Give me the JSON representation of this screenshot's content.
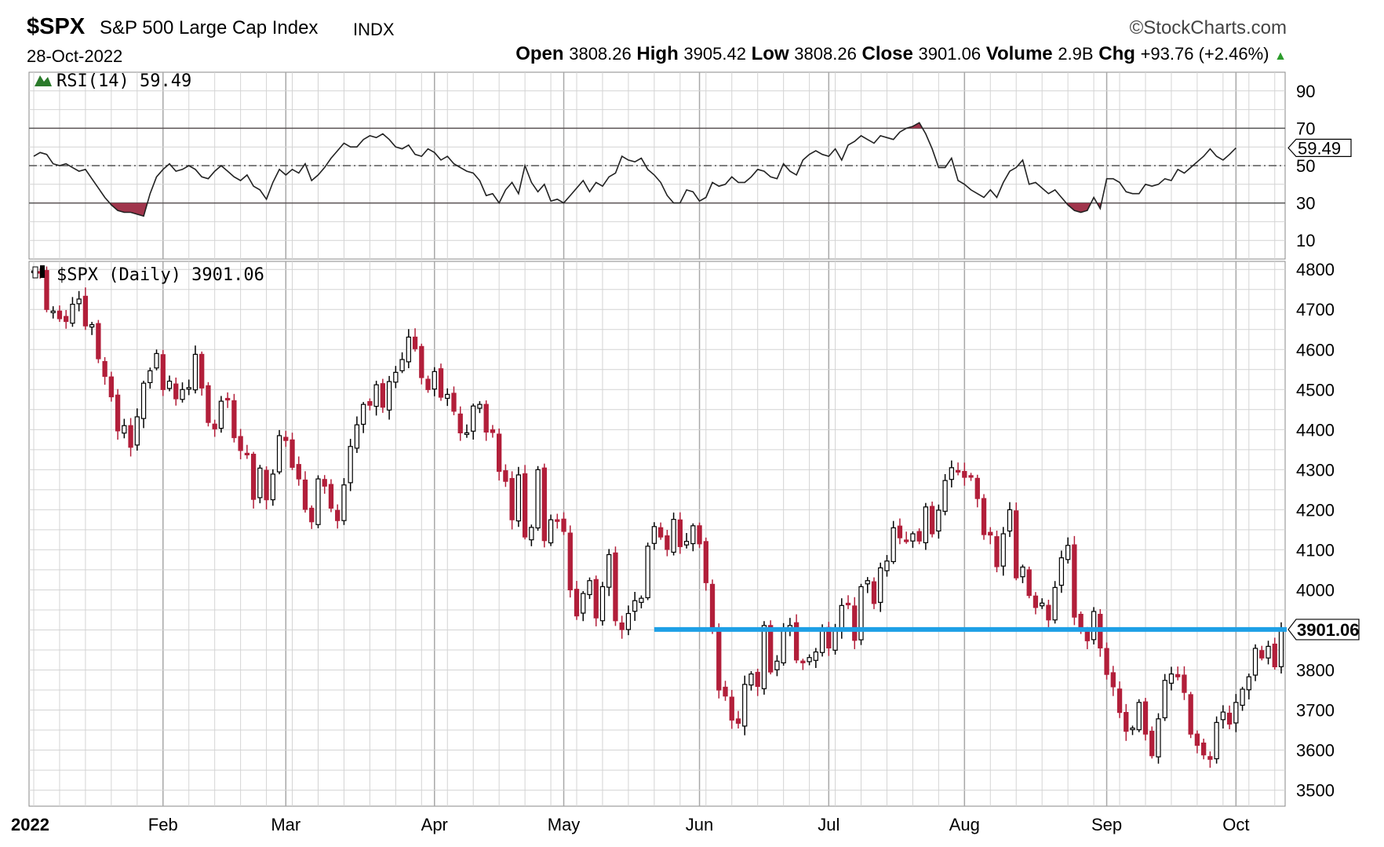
{
  "header": {
    "symbol": "$SPX",
    "name": "S&P 500 Large Cap Index",
    "exchange": "INDX",
    "brand": "StockCharts.com",
    "date": "28-Oct-2022",
    "open_label": "Open",
    "open": "3808.26",
    "high_label": "High",
    "high": "3905.42",
    "low_label": "Low",
    "low": "3808.26",
    "close_label": "Close",
    "close": "3901.06",
    "volume_label": "Volume",
    "volume": "2.9B",
    "chg_label": "Chg",
    "chg": "+93.76 (+2.46%)"
  },
  "colors": {
    "up": "#ffffff",
    "down": "#b21f3a",
    "line": "#000000",
    "grid": "#d4d4d4",
    "support": "#1ea0e6",
    "rsi": "#222222"
  },
  "chart_data": [
    {
      "type": "line",
      "title": "RSI(14) 59.49",
      "ylim": [
        0,
        100
      ],
      "yticks": [
        90,
        70,
        50,
        30,
        10
      ],
      "levels": [
        70,
        50,
        30
      ],
      "last_value": "59.49",
      "x_axis": [
        "2022",
        "Feb",
        "Mar",
        "Apr",
        "May",
        "Jun",
        "Jul",
        "Aug",
        "Sep",
        "Oct"
      ],
      "values": [
        55,
        57,
        56,
        51,
        50,
        51,
        49,
        47,
        48,
        43,
        38,
        33,
        29,
        26,
        25,
        25,
        24,
        23,
        35,
        44,
        48,
        51,
        47,
        48,
        50,
        48,
        44,
        43,
        47,
        50,
        47,
        44,
        42,
        45,
        39,
        37,
        32,
        41,
        48,
        45,
        48,
        46,
        51,
        42,
        45,
        49,
        54,
        58,
        62,
        60,
        60,
        64,
        66,
        65,
        67,
        64,
        60,
        59,
        61,
        56,
        55,
        59,
        57,
        53,
        55,
        51,
        49,
        47,
        46,
        42,
        34,
        35,
        30,
        37,
        41,
        35,
        50,
        41,
        36,
        40,
        31,
        32,
        30,
        34,
        38,
        42,
        36,
        41,
        39,
        44,
        46,
        55,
        53,
        52,
        54,
        48,
        45,
        41,
        34,
        30,
        30,
        37,
        36,
        31,
        33,
        41,
        39,
        40,
        44,
        41,
        41,
        44,
        48,
        47,
        44,
        43,
        51,
        47,
        45,
        53,
        56,
        58,
        56,
        55,
        59,
        53,
        61,
        63,
        66,
        64,
        62,
        66,
        65,
        64,
        68,
        70,
        71,
        73,
        67,
        59,
        49,
        49,
        54,
        42,
        40,
        37,
        35,
        33,
        37,
        33,
        41,
        47,
        49,
        53,
        40,
        41,
        38,
        35,
        37,
        33,
        29,
        26,
        25,
        26,
        33,
        27,
        43,
        43,
        41,
        36,
        35,
        35,
        40,
        39,
        40,
        43,
        42,
        48,
        46,
        49,
        52,
        55,
        59,
        55,
        53,
        56,
        59.5
      ]
    },
    {
      "type": "candlestick",
      "title": "$SPX (Daily) 3901.06",
      "ylim": [
        3460,
        4820
      ],
      "yticks": [
        4800,
        4700,
        4600,
        4500,
        4400,
        4300,
        4200,
        4100,
        4000,
        3800,
        3700,
        3600,
        3500
      ],
      "last_close": "3901.06",
      "support_level": 3901.06,
      "x_axis": [
        "2022",
        "Feb",
        "Mar",
        "Apr",
        "May",
        "Jun",
        "Jul",
        "Aug",
        "Sep",
        "Oct"
      ],
      "x_axis_positions": [
        0,
        20,
        39,
        62,
        82,
        103,
        123,
        144,
        166,
        186
      ],
      "close": [
        4796,
        4793,
        4700,
        4696,
        4677,
        4670,
        4713,
        4726,
        4659,
        4662,
        4577,
        4533,
        4482,
        4397,
        4410,
        4356,
        4432,
        4516,
        4547,
        4590,
        4500,
        4521,
        4477,
        4500,
        4505,
        4588,
        4504,
        4418,
        4402,
        4471,
        4475,
        4380,
        4348,
        4340,
        4226,
        4304,
        4225,
        4289,
        4385,
        4373,
        4306,
        4277,
        4201,
        4170,
        4277,
        4259,
        4204,
        4173,
        4262,
        4358,
        4412,
        4463,
        4461,
        4512,
        4456,
        4520,
        4543,
        4575,
        4631,
        4602,
        4530,
        4500,
        4545,
        4481,
        4488,
        4446,
        4392,
        4392,
        4459,
        4463,
        4394,
        4393,
        4296,
        4271,
        4175,
        4287,
        4132,
        4156,
        4300,
        4123,
        4175,
        4171,
        4146,
        4000,
        3935,
        3991,
        4023,
        3930,
        4008,
        4088,
        3923,
        3901,
        3941,
        3973,
        3979,
        4109,
        4158,
        4132,
        4101,
        4176,
        4108,
        4121,
        4160,
        4115,
        4018,
        3901,
        3750,
        3735,
        3675,
        3667,
        3764,
        3790,
        3759,
        3911,
        3795,
        3822,
        3900,
        3911,
        3825,
        3818,
        3831,
        3845,
        3902,
        3855,
        3899,
        3961,
        3964,
        3874,
        4008,
        4023,
        3966,
        4055,
        4072,
        4155,
        4130,
        4122,
        4140,
        4122,
        4207,
        4140,
        4199,
        4273,
        4305,
        4297,
        4281,
        4284,
        4228,
        4138,
        4137,
        4058,
        4140,
        4200,
        4030,
        4057,
        3986,
        3956,
        3967,
        3925,
        4006,
        4080,
        4111,
        3932,
        3901,
        3873,
        3946,
        3855,
        3789,
        3758,
        3694,
        3647,
        3655,
        3719,
        3640,
        3586,
        3678,
        3774,
        3790,
        3783,
        3744,
        3640,
        3612,
        3588,
        3577,
        3669,
        3695,
        3665,
        3719,
        3752,
        3783,
        3854,
        3830,
        3859,
        3808,
        3901
      ]
    }
  ]
}
